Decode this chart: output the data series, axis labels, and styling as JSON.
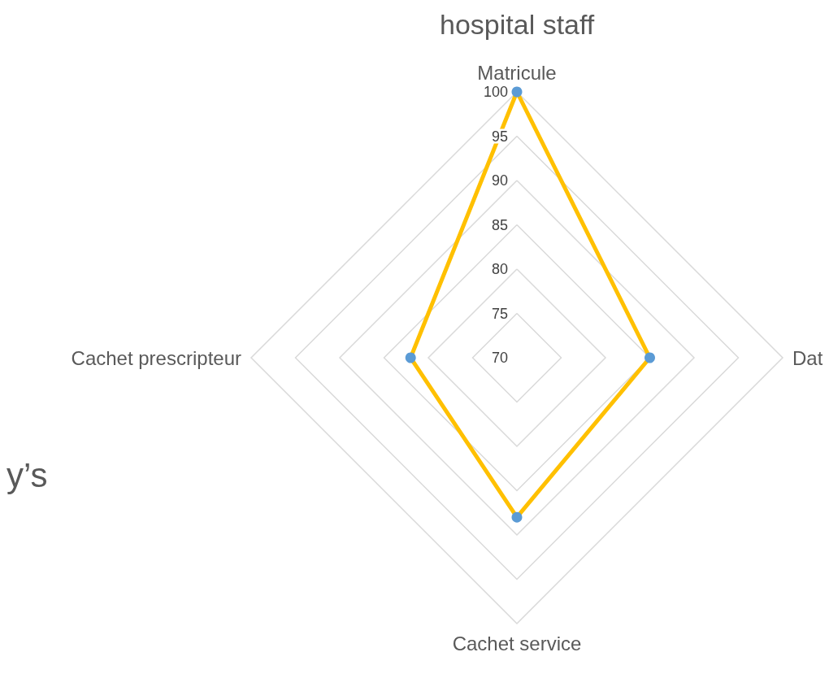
{
  "chart_data": {
    "type": "radar",
    "title": "hospital staff",
    "categories": [
      "Matricule",
      "Dat",
      "Cachet service",
      "Cachet prescripteur"
    ],
    "series": [
      {
        "color": "#ffc000",
        "values": [
          100,
          85,
          88,
          82
        ]
      }
    ],
    "ylim": [
      70,
      100
    ],
    "yticks": [
      70,
      75,
      80,
      85,
      90,
      95,
      100
    ],
    "grid": true,
    "marker": "circle",
    "annotations": [
      "y’s"
    ]
  }
}
